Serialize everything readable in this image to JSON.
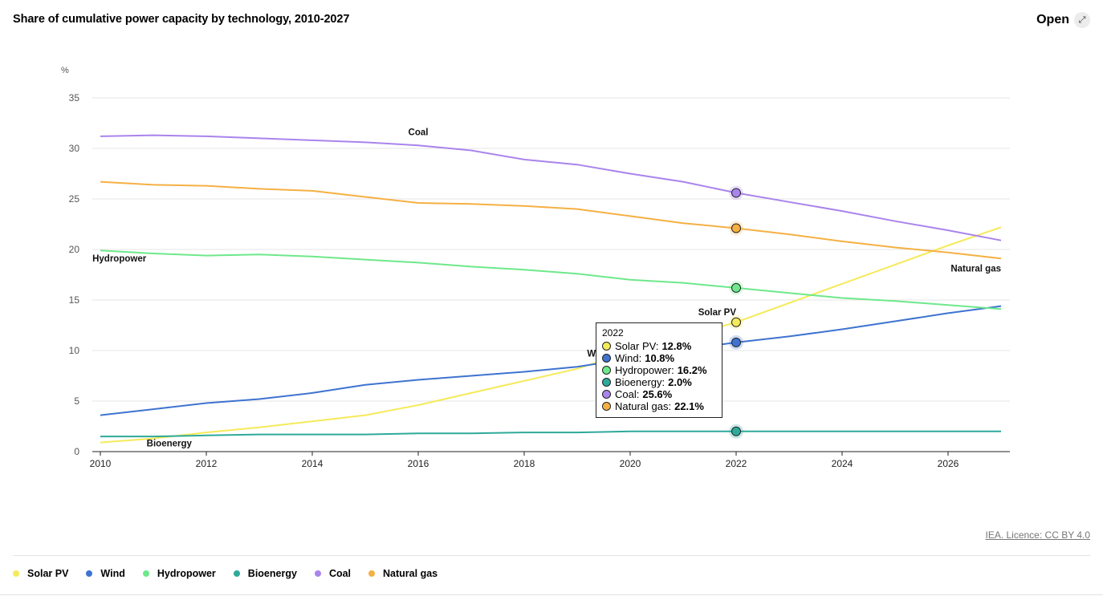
{
  "header": {
    "title": "Share of cumulative power capacity by technology, 2010-2027",
    "open_label": "Open"
  },
  "footer": {
    "licence": "IEA. Licence: CC BY 4.0"
  },
  "chart_data": {
    "type": "line",
    "title": "Share of cumulative power capacity by technology, 2010-2027",
    "ylabel": "%",
    "xlabel": "",
    "xlim": [
      2010,
      2027
    ],
    "ylim": [
      0,
      35
    ],
    "xticks": [
      2010,
      2012,
      2014,
      2016,
      2018,
      2020,
      2022,
      2024,
      2026
    ],
    "yticks": [
      0,
      5,
      10,
      15,
      20,
      25,
      30,
      35
    ],
    "grid": true,
    "legend_position": "bottom",
    "x": [
      2010,
      2011,
      2012,
      2013,
      2014,
      2015,
      2016,
      2017,
      2018,
      2019,
      2020,
      2021,
      2022,
      2023,
      2024,
      2025,
      2026,
      2027
    ],
    "series": [
      {
        "name": "Solar PV",
        "color": "#f5ea59",
        "values": [
          0.9,
          1.3,
          1.9,
          2.4,
          3.0,
          3.6,
          4.6,
          5.8,
          7.0,
          8.2,
          9.9,
          11.3,
          12.8,
          14.7,
          16.6,
          18.5,
          20.4,
          22.2
        ]
      },
      {
        "name": "Wind",
        "color": "#3e73d0",
        "values": [
          3.6,
          4.2,
          4.8,
          5.2,
          5.8,
          6.6,
          7.1,
          7.5,
          7.9,
          8.4,
          9.2,
          10.1,
          10.8,
          11.4,
          12.1,
          12.9,
          13.7,
          14.4
        ]
      },
      {
        "name": "Hydropower",
        "color": "#6ee88b",
        "values": [
          19.9,
          19.6,
          19.4,
          19.5,
          19.3,
          19.0,
          18.7,
          18.3,
          18.0,
          17.6,
          17.0,
          16.7,
          16.2,
          15.7,
          15.2,
          14.9,
          14.5,
          14.1
        ]
      },
      {
        "name": "Bioenergy",
        "color": "#2ea99a",
        "values": [
          1.5,
          1.5,
          1.6,
          1.7,
          1.7,
          1.7,
          1.8,
          1.8,
          1.9,
          1.9,
          2.0,
          2.0,
          2.0,
          2.0,
          2.0,
          2.0,
          2.0,
          2.0
        ]
      },
      {
        "name": "Coal",
        "color": "#a984ec",
        "values": [
          31.2,
          31.3,
          31.2,
          31.0,
          30.8,
          30.6,
          30.3,
          29.8,
          28.9,
          28.4,
          27.5,
          26.7,
          25.6,
          24.7,
          23.8,
          22.8,
          21.9,
          20.9
        ]
      },
      {
        "name": "Natural gas",
        "color": "#f5b043",
        "values": [
          26.7,
          26.4,
          26.3,
          26.0,
          25.8,
          25.2,
          24.6,
          24.5,
          24.3,
          24.0,
          23.3,
          22.6,
          22.1,
          21.5,
          20.8,
          20.2,
          19.7,
          19.1
        ]
      }
    ],
    "line_labels": [
      {
        "text": "Coal"
      },
      {
        "text": "Hydropower"
      },
      {
        "text": "Solar PV"
      },
      {
        "text": "Wind"
      },
      {
        "text": "Bioenergy"
      },
      {
        "text": "Natural gas"
      }
    ],
    "highlight_x": 2022,
    "tooltip": {
      "date": "2022",
      "rows": [
        {
          "name": "Solar PV",
          "value": "12.8%",
          "color": "#f5ea59"
        },
        {
          "name": "Wind",
          "value": "10.8%",
          "color": "#3e73d0"
        },
        {
          "name": "Hydropower",
          "value": "16.2%",
          "color": "#6ee88b"
        },
        {
          "name": "Bioenergy",
          "value": "2.0%",
          "color": "#2ea99a"
        },
        {
          "name": "Coal",
          "value": "25.6%",
          "color": "#a984ec"
        },
        {
          "name": "Natural gas",
          "value": "22.1%",
          "color": "#f5b043"
        }
      ]
    }
  }
}
